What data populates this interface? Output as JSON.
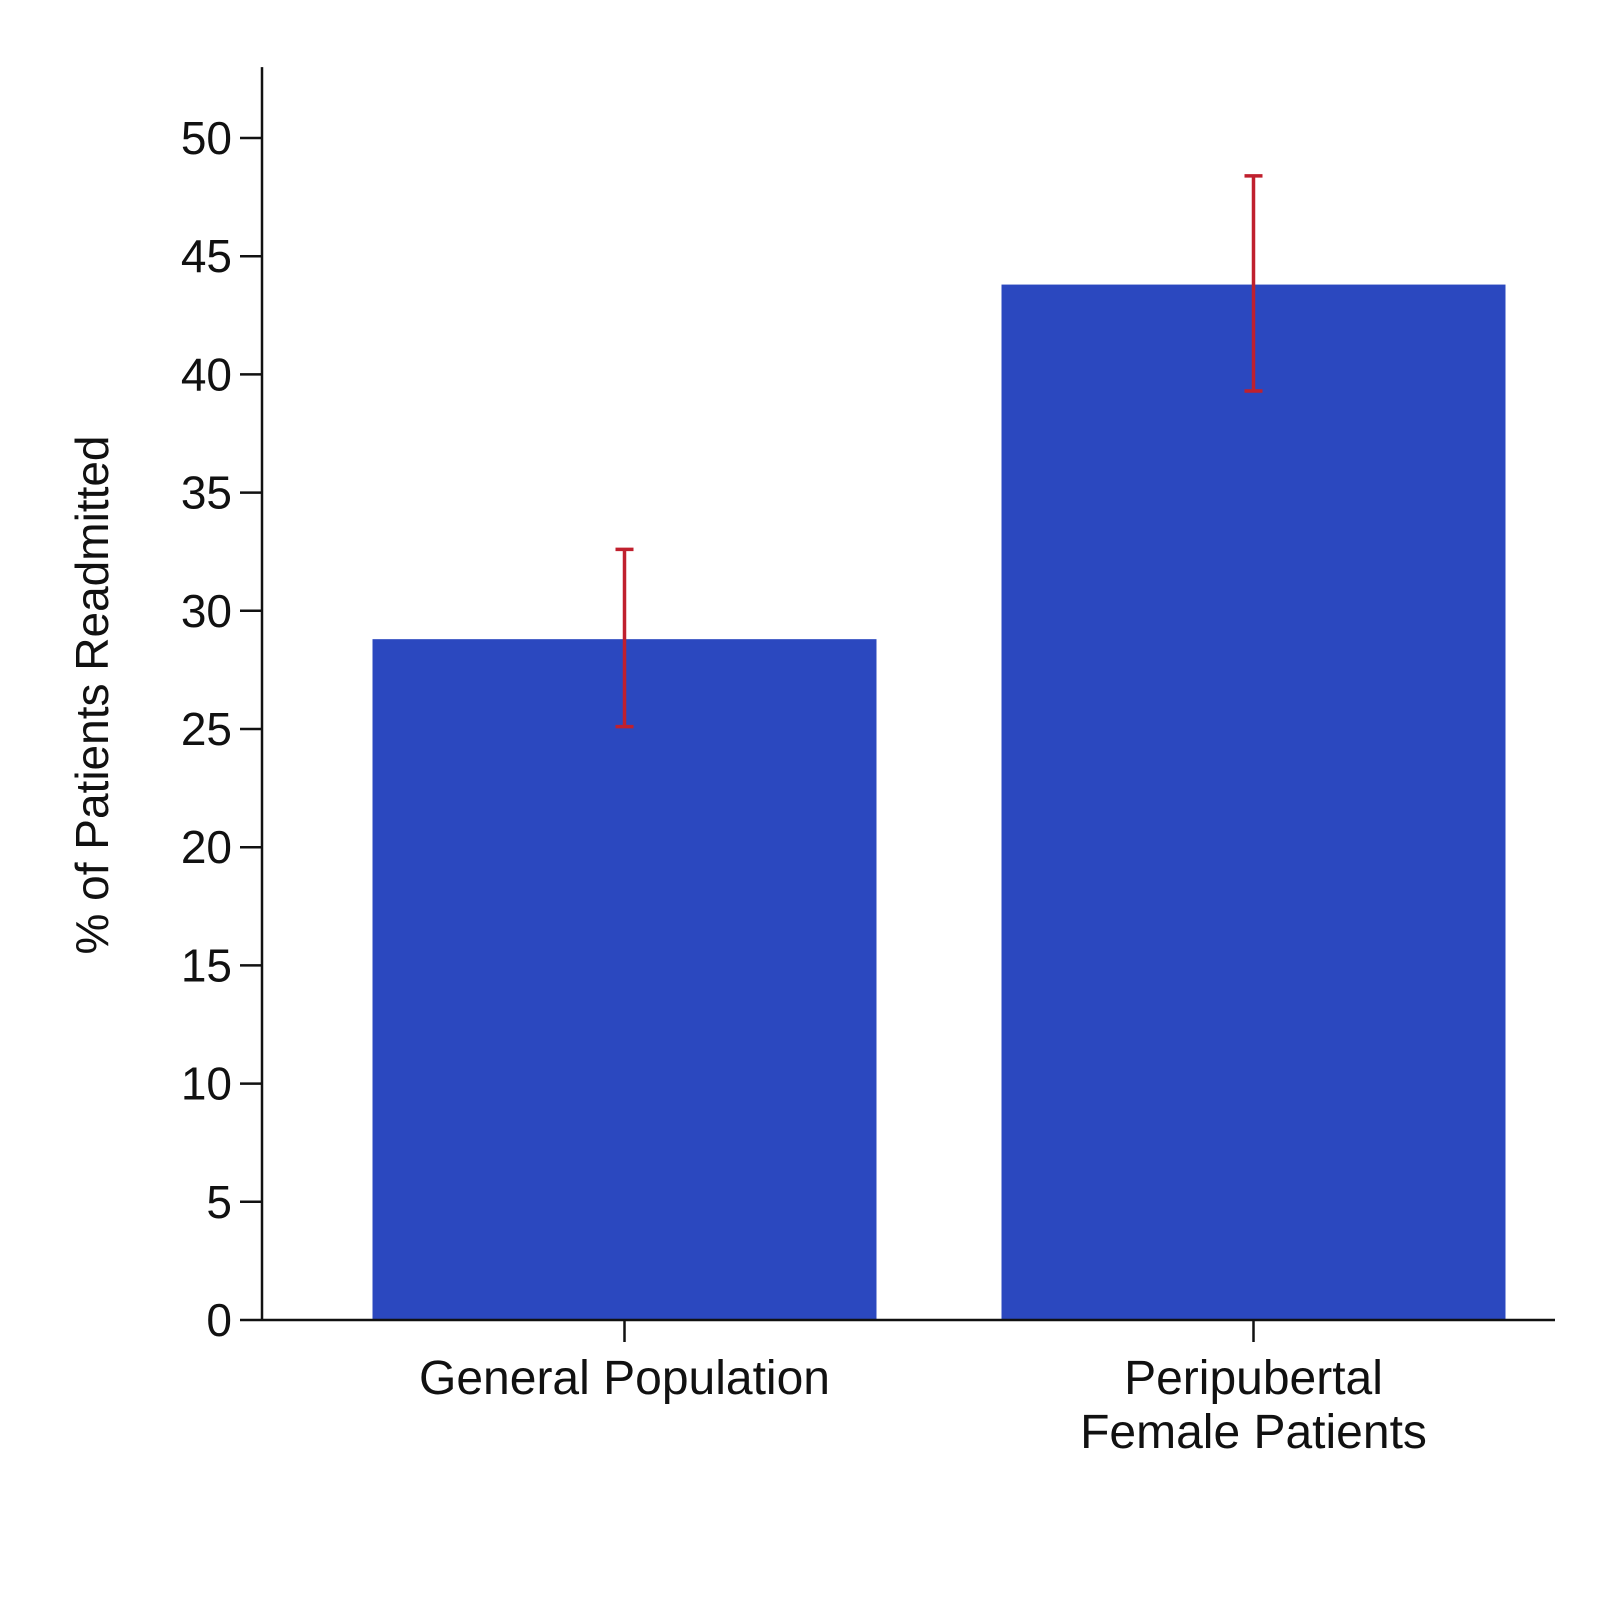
{
  "chart_data": {
    "type": "bar",
    "categories": [
      [
        "General Population"
      ],
      [
        "Peripubertal",
        "Female Patients"
      ]
    ],
    "values": [
      28.8,
      43.8
    ],
    "error_low": [
      25.1,
      39.3
    ],
    "error_high": [
      32.6,
      48.4
    ],
    "ylabel": "% of Patients Readmitted",
    "xlabel": "",
    "title": "",
    "ylim": [
      0,
      53
    ],
    "yticks": [
      0,
      5,
      10,
      15,
      20,
      25,
      30,
      35,
      40,
      45,
      50
    ],
    "grid": false,
    "colors": {
      "bar": "#2b48bf",
      "error": "#c0202e",
      "axis": "#111111"
    }
  }
}
